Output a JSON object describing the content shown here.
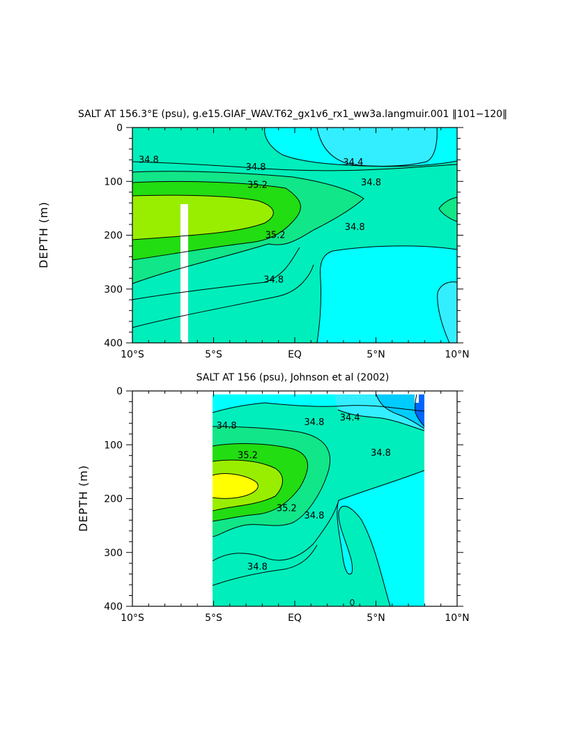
{
  "chart_data": [
    {
      "type": "contour",
      "title": "SALT AT 156.3°E (psu), g.e15.GIAF_WAV.T62_gx1v6_rx1_ww3a.langmuir.001 ‖101−120‖",
      "xlabel": "",
      "ylabel": "DEPTH (m)",
      "xlim": [
        -10,
        10
      ],
      "ylim": [
        400,
        0
      ],
      "x_ticks": [
        -10,
        -5,
        0,
        5,
        10
      ],
      "x_tick_labels": [
        "10°S",
        "5°S",
        "EQ",
        "5°N",
        "10°N"
      ],
      "y_ticks": [
        0,
        100,
        200,
        300,
        400
      ],
      "y_tick_labels": [
        "0",
        "100",
        "200",
        "300",
        "400"
      ],
      "contour_labels": [
        {
          "text": "34.8",
          "x": -9.0,
          "y": 60
        },
        {
          "text": "34.8",
          "x": -2.4,
          "y": 74
        },
        {
          "text": "35.2",
          "x": -2.3,
          "y": 107
        },
        {
          "text": "34.4",
          "x": 3.6,
          "y": 65
        },
        {
          "text": "34.8",
          "x": 4.7,
          "y": 102
        },
        {
          "text": "34.8",
          "x": 3.7,
          "y": 185
        },
        {
          "text": "35.2",
          "x": -1.2,
          "y": 200
        },
        {
          "text": "34.8",
          "x": -1.3,
          "y": 283
        }
      ],
      "regions": [
        {
          "level": "34.6-34.8",
          "color": "#00ffff"
        },
        {
          "level": "34.4-34.6",
          "color": "#33eeff"
        },
        {
          "level": "34.8-35.0",
          "color": "#00eebb"
        },
        {
          "level": "35.0-35.2",
          "color": "#11e688"
        },
        {
          "level": "35.2-35.4",
          "color": "#22dd11"
        },
        {
          "level": "35.4-35.6",
          "color": "#99ee00"
        }
      ],
      "missing_bar": {
        "x": [
          -3.4,
          -2.8
        ],
        "y": [
          143,
          400
        ]
      }
    },
    {
      "type": "contour",
      "title": "SALT AT 156 (psu), Johnson et al (2002)",
      "xlabel": "",
      "ylabel": "DEPTH (m)",
      "xlim": [
        -10,
        10
      ],
      "ylim": [
        400,
        0
      ],
      "x_ticks": [
        -10,
        -5,
        0,
        5,
        10
      ],
      "x_tick_labels": [
        "10°S",
        "5°S",
        "EQ",
        "5°N",
        "10°N"
      ],
      "y_ticks": [
        0,
        100,
        200,
        300,
        400
      ],
      "y_tick_labels": [
        "0",
        "100",
        "200",
        "300",
        "400"
      ],
      "data_extent": {
        "x": [
          -5,
          8
        ],
        "y": [
          8,
          400
        ]
      },
      "contour_labels": [
        {
          "text": "34.8",
          "x": -4.2,
          "y": 65
        },
        {
          "text": "34.8",
          "x": 1.2,
          "y": 58
        },
        {
          "text": "34.4",
          "x": 3.4,
          "y": 50
        },
        {
          "text": "34.8",
          "x": 5.3,
          "y": 115
        },
        {
          "text": "35.2",
          "x": -2.9,
          "y": 120
        },
        {
          "text": "35.2",
          "x": -0.5,
          "y": 218
        },
        {
          "text": "34.8",
          "x": 1.2,
          "y": 232
        },
        {
          "text": "34.8",
          "x": -2.3,
          "y": 327
        }
      ],
      "regions": [
        {
          "level": "34.8-35.0",
          "color": "#00eebb"
        },
        {
          "level": "34.6-34.8",
          "color": "#00ffff"
        },
        {
          "level": "34.4-34.6",
          "color": "#33eeff"
        },
        {
          "level": "34.2-34.4",
          "color": "#00ccff"
        },
        {
          "level": "<34.2",
          "color": "#0066ff"
        },
        {
          "level": "35.0-35.2",
          "color": "#11e688"
        },
        {
          "level": "35.2-35.4",
          "color": "#22dd11"
        },
        {
          "level": "35.4-35.6",
          "color": "#99ee00"
        },
        {
          "level": ">35.6",
          "color": "#ffff00"
        }
      ]
    }
  ]
}
